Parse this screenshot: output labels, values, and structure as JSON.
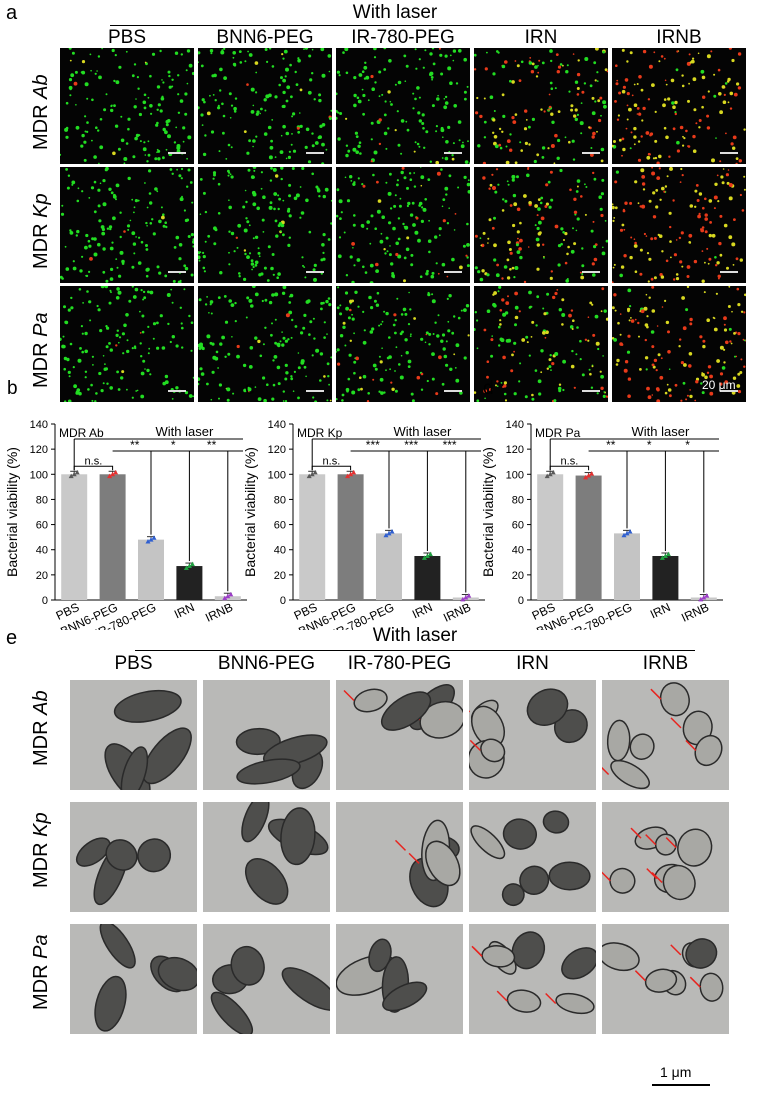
{
  "panel_a": {
    "label": "a",
    "header": "With laser",
    "columns": [
      "PBS",
      "BNN6-PEG",
      "IR-780-PEG",
      "IRN",
      "IRNB"
    ],
    "rows": [
      {
        "prefix": "MDR",
        "species": "Ab"
      },
      {
        "prefix": "MDR",
        "species": "Kp"
      },
      {
        "prefix": "MDR",
        "species": "Pa"
      }
    ],
    "scale_label": "20 μm",
    "colors": {
      "live": "#22dd22",
      "dead": "#e83a1a",
      "merge": "#d8d820"
    }
  },
  "panel_e": {
    "label": "e",
    "header": "With laser",
    "columns": [
      "PBS",
      "BNN6-PEG",
      "IR-780-PEG",
      "IRN",
      "IRNB"
    ],
    "rows": [
      {
        "prefix": "MDR",
        "species": "Ab"
      },
      {
        "prefix": "MDR",
        "species": "Kp"
      },
      {
        "prefix": "MDR",
        "species": "Pa"
      }
    ],
    "scale_label": "1 μm",
    "arrow_color": "#e8231e"
  },
  "chart_data": [
    {
      "label": "b",
      "type": "bar",
      "title": "MDR Ab",
      "ylabel": "Bacterial viability (%)",
      "categories": [
        "PBS",
        "BNN6-PEG",
        "IR-780-PEG",
        "IRN",
        "IRNB"
      ],
      "values": [
        100,
        100,
        48,
        27,
        3
      ],
      "ylim": [
        0,
        140
      ],
      "yticks": [
        0,
        20,
        40,
        60,
        80,
        100,
        120,
        140
      ],
      "bracket_label": "With laser",
      "significance": [
        "n.s.",
        "**",
        "*",
        "**"
      ]
    },
    {
      "label": "c",
      "type": "bar",
      "title": "MDR Kp",
      "ylabel": "Bacterial viability (%)",
      "categories": [
        "PBS",
        "BNN6-PEG",
        "IR-780-PEG",
        "IRN",
        "IRNB"
      ],
      "values": [
        100,
        100,
        53,
        35,
        2
      ],
      "ylim": [
        0,
        140
      ],
      "yticks": [
        0,
        20,
        40,
        60,
        80,
        100,
        120,
        140
      ],
      "bracket_label": "With laser",
      "significance": [
        "n.s.",
        "***",
        "***",
        "***"
      ]
    },
    {
      "label": "d",
      "type": "bar",
      "title": "MDR Pa",
      "ylabel": "Bacterial viability (%)",
      "categories": [
        "PBS",
        "BNN6-PEG",
        "IR-780-PEG",
        "IRN",
        "IRNB"
      ],
      "values": [
        100,
        99,
        53,
        35,
        2
      ],
      "ylim": [
        0,
        140
      ],
      "yticks": [
        0,
        20,
        40,
        60,
        80,
        100,
        120,
        140
      ],
      "bracket_label": "With laser",
      "significance": [
        "n.s.",
        "**",
        "*",
        "*"
      ]
    }
  ],
  "bar_colors": [
    "#c9c9c9",
    "#7d7d7d",
    "#c4c4c4",
    "#222222",
    "#c9c9c9"
  ],
  "point_colors": [
    "#5a5a5a",
    "#e53030",
    "#2f5fd0",
    "#1fa040",
    "#9c3cc8"
  ]
}
